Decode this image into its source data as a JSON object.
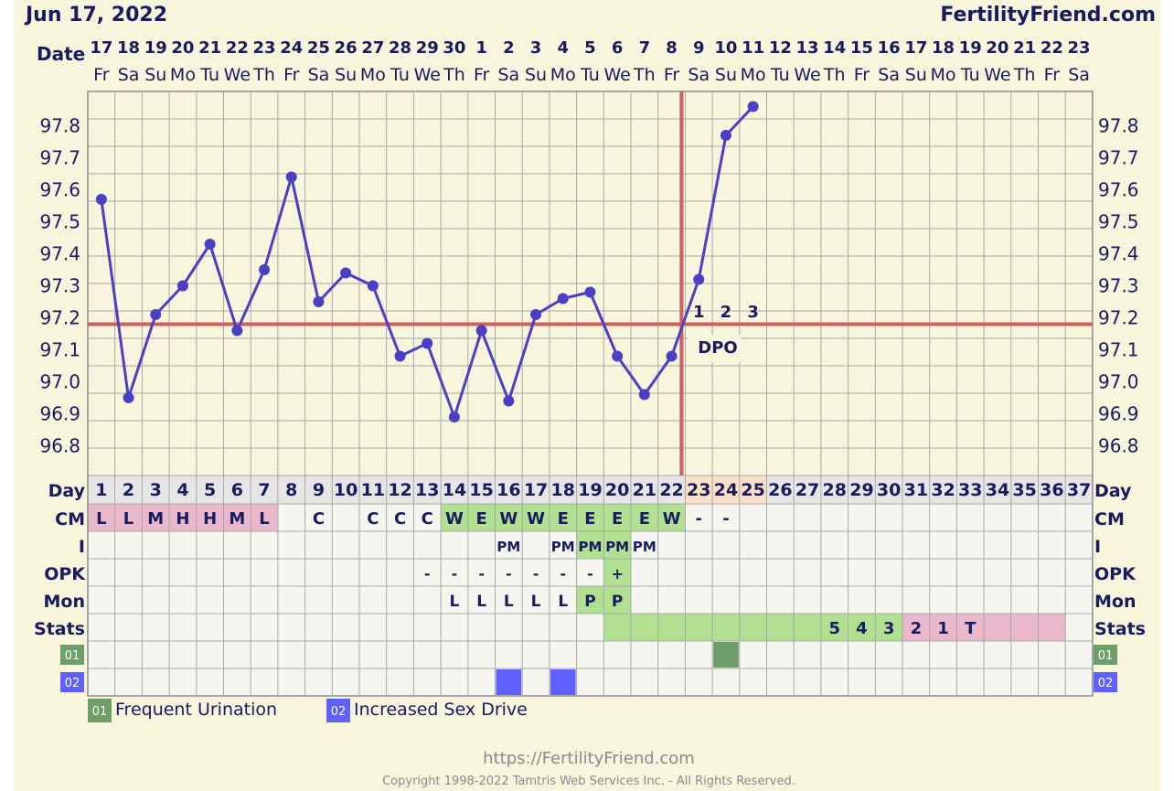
{
  "header": {
    "date": "Jun 17, 2022",
    "site": "FertilityFriend.com"
  },
  "labels": {
    "date": "Date",
    "day": "Day",
    "cm": "CM",
    "i": "I",
    "opk": "OPK",
    "mon": "Mon",
    "stats": "Stats",
    "dpo": "DPO"
  },
  "colors": {
    "temp_line": "#4b3fc4",
    "coverline": "#d06060",
    "grid": "#a8a8a8",
    "fertile_green": "#b0e090",
    "cm_pink": "#eab8cc",
    "dpo_peach": "#fbe0c8",
    "day_header": "#e6e6e6",
    "symptom_01": "#6e9e6a",
    "symptom_02": "#6060ff"
  },
  "chart_data": {
    "type": "line",
    "title": "",
    "xlabel": "Date",
    "ylabel": "",
    "ylim": [
      96.75,
      97.9
    ],
    "yticks": [
      "97.8",
      "97.7",
      "97.6",
      "97.5",
      "97.4",
      "97.3",
      "97.2",
      "97.1",
      "97.0",
      "96.9",
      "96.8"
    ],
    "dates": [
      "17",
      "18",
      "19",
      "20",
      "21",
      "22",
      "23",
      "24",
      "25",
      "26",
      "27",
      "28",
      "29",
      "30",
      "1",
      "2",
      "3",
      "4",
      "5",
      "6",
      "7",
      "8",
      "9",
      "10",
      "11",
      "12",
      "13",
      "14",
      "15",
      "16",
      "17",
      "18",
      "19",
      "20",
      "21",
      "22",
      "23"
    ],
    "weekdays": [
      "Fr",
      "Sa",
      "Su",
      "Mo",
      "Tu",
      "We",
      "Th",
      "Fr",
      "Sa",
      "Su",
      "Mo",
      "Tu",
      "We",
      "Th",
      "Fr",
      "Sa",
      "Su",
      "Mo",
      "Tu",
      "We",
      "Th",
      "Fr",
      "Sa",
      "Su",
      "Mo",
      "Tu",
      "We",
      "Th",
      "Fr",
      "Sa",
      "Su",
      "Mo",
      "Tu",
      "We",
      "Th",
      "Fr",
      "Sa"
    ],
    "days": [
      "1",
      "2",
      "3",
      "4",
      "5",
      "6",
      "7",
      "8",
      "9",
      "10",
      "11",
      "12",
      "13",
      "14",
      "15",
      "16",
      "17",
      "18",
      "19",
      "20",
      "21",
      "22",
      "23",
      "24",
      "25",
      "26",
      "27",
      "28",
      "29",
      "30",
      "31",
      "32",
      "33",
      "34",
      "35",
      "36",
      "37"
    ],
    "temps": [
      97.57,
      96.95,
      97.21,
      97.3,
      97.43,
      97.16,
      97.35,
      97.64,
      97.25,
      97.34,
      97.3,
      97.08,
      97.12,
      96.89,
      97.16,
      96.94,
      97.21,
      97.26,
      97.28,
      97.08,
      96.96,
      97.08,
      97.32,
      97.77,
      97.86
    ],
    "coverline": 97.18,
    "ovulation_day": 22,
    "dpo_numbers": [
      "1",
      "2",
      "3"
    ],
    "cm": [
      "L",
      "L",
      "M",
      "H",
      "H",
      "M",
      "L",
      "",
      "C",
      "",
      "C",
      "C",
      "C",
      "W",
      "E",
      "W",
      "W",
      "E",
      "E",
      "E",
      "E",
      "W",
      "-",
      "-",
      "",
      "",
      "",
      "",
      "",
      "",
      "",
      "",
      "",
      "",
      "",
      "",
      ""
    ],
    "i": [
      "",
      "",
      "",
      "",
      "",
      "",
      "",
      "",
      "",
      "",
      "",
      "",
      "",
      "",
      "",
      "PM",
      "",
      "PM",
      "PM",
      "PM",
      "PM",
      "",
      "",
      "",
      "",
      "",
      "",
      "",
      "",
      "",
      "",
      "",
      "",
      "",
      "",
      "",
      ""
    ],
    "opk": [
      "",
      "",
      "",
      "",
      "",
      "",
      "",
      "",
      "",
      "",
      "",
      "",
      "-",
      "-",
      "-",
      "-",
      "-",
      "-",
      "-",
      "+",
      "",
      "",
      "",
      "",
      "",
      "",
      "",
      "",
      "",
      "",
      "",
      "",
      "",
      "",
      "",
      "",
      ""
    ],
    "mon": [
      "",
      "",
      "",
      "",
      "",
      "",
      "",
      "",
      "",
      "",
      "",
      "",
      "",
      "L",
      "L",
      "L",
      "L",
      "L",
      "P",
      "P",
      "",
      "",
      "",
      "",
      "",
      "",
      "",
      "",
      "",
      "",
      "",
      "",
      "",
      "",
      "",
      "",
      ""
    ],
    "stats": [
      "",
      "",
      "",
      "",
      "",
      "",
      "",
      "",
      "",
      "",
      "",
      "",
      "",
      "",
      "",
      "",
      "",
      "",
      "",
      "",
      "",
      "",
      "",
      "",
      "",
      "",
      "",
      "5",
      "4",
      "3",
      "2",
      "1",
      "T",
      "",
      "",
      "",
      ""
    ],
    "symptom_01_days": [
      24
    ],
    "symptom_02_days": [
      16,
      18
    ]
  },
  "row_labels": [
    "01",
    "02"
  ],
  "legend": [
    {
      "code": "01",
      "label": "Frequent Urination"
    },
    {
      "code": "02",
      "label": "Increased Sex Drive"
    }
  ],
  "footer": {
    "url": "https://FertilityFriend.com",
    "copyright": "Copyright 1998-2022 Tamtris Web Services Inc. - All Rights Reserved."
  }
}
